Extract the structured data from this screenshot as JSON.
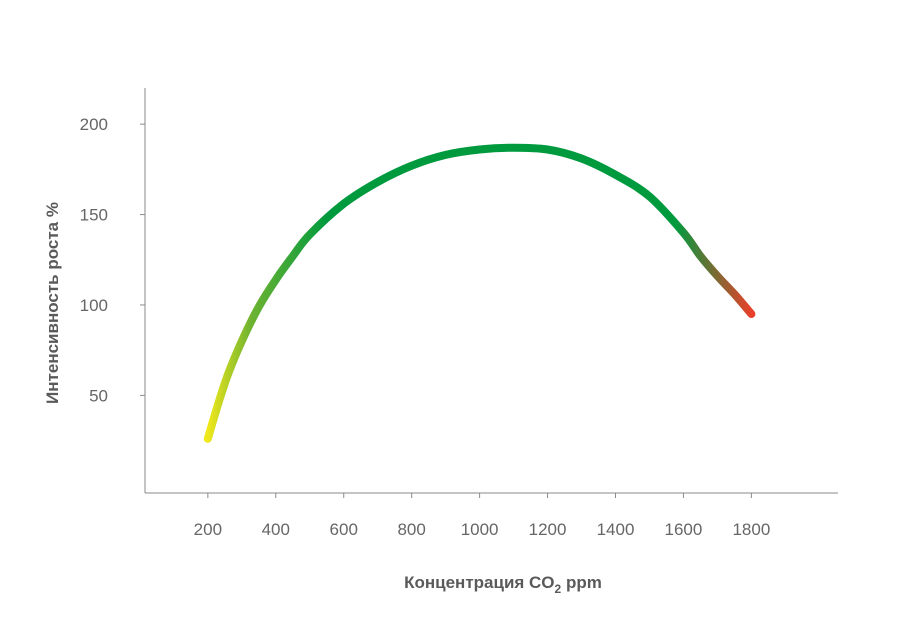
{
  "chart_data": {
    "type": "line",
    "xlabel": "Концентрация CO",
    "xlabel_sub": "2",
    "xlabel_unit": "ppm",
    "ylabel": "Интенсивность роста %",
    "xticks": [
      200,
      400,
      600,
      800,
      1000,
      1200,
      1400,
      1600,
      1800
    ],
    "yticks": [
      50,
      100,
      150,
      200
    ],
    "xlim": [
      15,
      2055
    ],
    "ylim": [
      -4,
      220
    ],
    "grid": false,
    "legend": "none",
    "series": [
      {
        "x": [
          200,
          230,
          260,
          300,
          350,
          400,
          450,
          500,
          600,
          700,
          800,
          900,
          1000,
          1100,
          1200,
          1300,
          1400,
          1500,
          1600,
          1650,
          1700,
          1750,
          1800
        ],
        "y": [
          26,
          45,
          62,
          80,
          99,
          114,
          127,
          139,
          156,
          168,
          177,
          183,
          186,
          187,
          186,
          181,
          172,
          160,
          140,
          127,
          116,
          106,
          95
        ],
        "gradient_colors": [
          "#f0e81a",
          "#6db331",
          "#009a3e",
          "#009a3e",
          "#e8402a"
        ]
      }
    ]
  }
}
